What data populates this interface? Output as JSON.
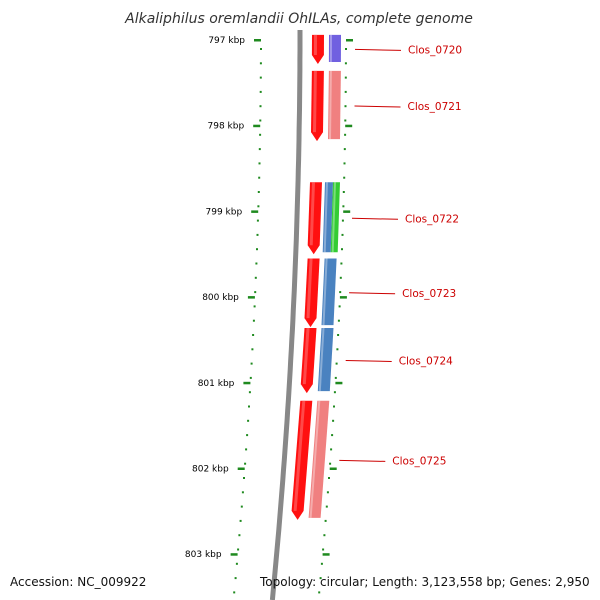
{
  "title": "Alkaliphilus oremlandii OhILAs, complete genome",
  "footer": {
    "accession": "Accession: NC_009922",
    "topology": "Topology: circular; Length: 3,123,558 bp; Genes: 2,950"
  },
  "colors": {
    "backbone": "#888888",
    "tick": "#1f8a1f",
    "label": "#cc0000",
    "forward_strand": "#ff1010"
  },
  "ticks": [
    {
      "label": "797 kbp",
      "kbp": 797
    },
    {
      "label": "798 kbp",
      "kbp": 798
    },
    {
      "label": "799 kbp",
      "kbp": 799
    },
    {
      "label": "800 kbp",
      "kbp": 800
    },
    {
      "label": "801 kbp",
      "kbp": 801
    },
    {
      "label": "802 kbp",
      "kbp": 802
    },
    {
      "label": "803 kbp",
      "kbp": 803
    }
  ],
  "genes": [
    {
      "name": "Clos_0720",
      "start_kbp": 796.94,
      "end_kbp": 797.28,
      "color": "#7060e0"
    },
    {
      "name": "Clos_0721",
      "start_kbp": 797.36,
      "end_kbp": 798.18,
      "color": "#f08080"
    },
    {
      "name": "Clos_0722",
      "start_kbp": 798.66,
      "end_kbp": 799.5,
      "color": "#4a82c0",
      "color2": "#33cc33"
    },
    {
      "name": "Clos_0723",
      "start_kbp": 799.55,
      "end_kbp": 800.35,
      "color": "#4a82c0"
    },
    {
      "name": "Clos_0724",
      "start_kbp": 800.36,
      "end_kbp": 801.12,
      "color": "#4a82c0"
    },
    {
      "name": "Clos_0725",
      "start_kbp": 801.21,
      "end_kbp": 802.6,
      "color": "#f08080"
    }
  ]
}
